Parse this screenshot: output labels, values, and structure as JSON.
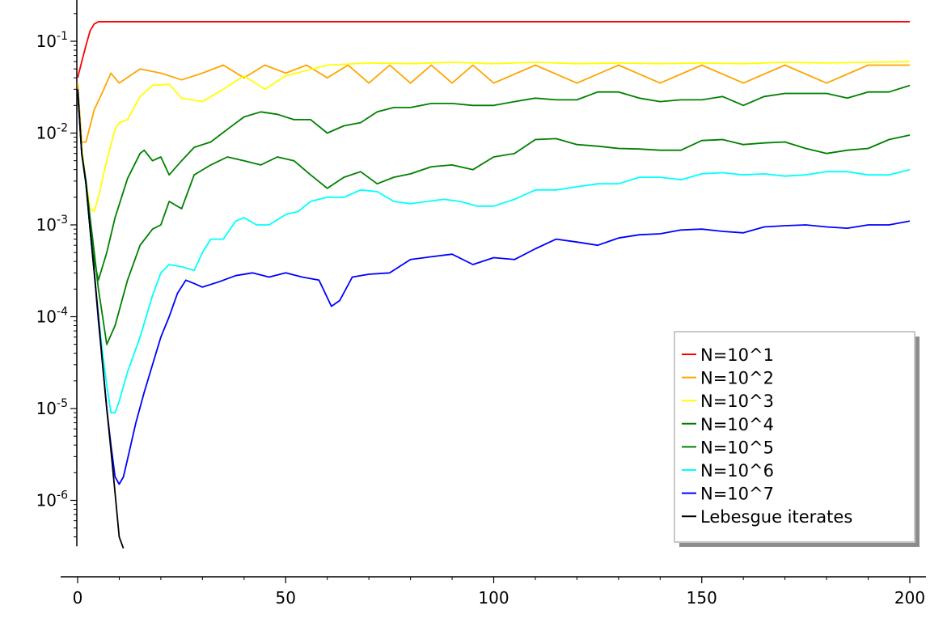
{
  "chart_data": {
    "type": "line",
    "title": "",
    "xlabel": "",
    "ylabel": "",
    "xlim": [
      0,
      200
    ],
    "ylim_log10": [
      -6.5,
      0.28
    ],
    "y_scale": "log",
    "grid": false,
    "legend_position": "bottom-right",
    "x_ticks": [
      {
        "value": 0,
        "label": "0"
      },
      {
        "value": 50,
        "label": "50"
      },
      {
        "value": 100,
        "label": "100"
      },
      {
        "value": 150,
        "label": "150"
      },
      {
        "value": 200,
        "label": "200"
      }
    ],
    "y_ticks": [
      {
        "log10": -1,
        "mantissa": "10",
        "exponent": "-1"
      },
      {
        "log10": -2,
        "mantissa": "10",
        "exponent": "-2"
      },
      {
        "log10": -3,
        "mantissa": "10",
        "exponent": "-3"
      },
      {
        "log10": -4,
        "mantissa": "10",
        "exponent": "-4"
      },
      {
        "log10": -5,
        "mantissa": "10",
        "exponent": "-5"
      },
      {
        "log10": -6,
        "mantissa": "10",
        "exponent": "-6"
      }
    ],
    "series": [
      {
        "name": "N=10^1",
        "color": "#ff0000",
        "x": [
          0,
          1,
          2,
          3,
          4,
          5,
          6,
          10,
          20,
          50,
          100,
          150,
          200
        ],
        "y": [
          0.04,
          0.06,
          0.09,
          0.13,
          0.155,
          0.163,
          0.163,
          0.163,
          0.163,
          0.163,
          0.163,
          0.163,
          0.163
        ]
      },
      {
        "name": "N=10^2",
        "color": "#ffa500",
        "x": [
          0,
          1,
          2,
          4,
          6,
          8,
          10,
          15,
          20,
          25,
          30,
          35,
          40,
          45,
          50,
          55,
          60,
          65,
          70,
          75,
          80,
          85,
          90,
          95,
          100,
          110,
          120,
          130,
          140,
          150,
          160,
          170,
          180,
          190,
          200
        ],
        "y": [
          0.035,
          0.008,
          0.008,
          0.018,
          0.028,
          0.045,
          0.035,
          0.05,
          0.045,
          0.038,
          0.045,
          0.055,
          0.04,
          0.055,
          0.045,
          0.055,
          0.04,
          0.055,
          0.035,
          0.055,
          0.035,
          0.055,
          0.035,
          0.055,
          0.035,
          0.055,
          0.035,
          0.055,
          0.035,
          0.055,
          0.035,
          0.055,
          0.035,
          0.055,
          0.055
        ]
      },
      {
        "name": "N=10^3",
        "color": "#ffff00",
        "x": [
          0,
          1,
          2,
          3,
          4,
          5,
          7,
          9,
          10,
          12,
          15,
          18,
          22,
          25,
          30,
          35,
          40,
          45,
          50,
          60,
          70,
          80,
          90,
          100,
          110,
          120,
          130,
          140,
          150,
          160,
          170,
          180,
          190,
          200
        ],
        "y": [
          0.03,
          0.007,
          0.003,
          0.0015,
          0.0014,
          0.002,
          0.005,
          0.011,
          0.013,
          0.014,
          0.025,
          0.033,
          0.034,
          0.024,
          0.022,
          0.03,
          0.042,
          0.03,
          0.042,
          0.055,
          0.058,
          0.057,
          0.059,
          0.057,
          0.059,
          0.057,
          0.058,
          0.057,
          0.058,
          0.057,
          0.059,
          0.058,
          0.059,
          0.06
        ]
      },
      {
        "name": "N=10^4",
        "color": "#008000",
        "x": [
          0,
          1,
          2,
          3,
          4,
          5,
          7,
          9,
          12,
          15,
          16,
          18,
          20,
          22,
          25,
          28,
          32,
          36,
          40,
          44,
          48,
          52,
          56,
          60,
          64,
          68,
          72,
          76,
          80,
          85,
          90,
          95,
          100,
          105,
          110,
          115,
          120,
          125,
          130,
          135,
          140,
          145,
          150,
          155,
          160,
          165,
          170,
          175,
          180,
          185,
          190,
          195,
          200
        ],
        "y": [
          0.03,
          0.006,
          0.003,
          0.001,
          0.0004,
          0.00025,
          0.0005,
          0.0012,
          0.0032,
          0.006,
          0.0065,
          0.005,
          0.0055,
          0.0035,
          0.005,
          0.007,
          0.008,
          0.011,
          0.015,
          0.017,
          0.016,
          0.014,
          0.014,
          0.01,
          0.012,
          0.013,
          0.017,
          0.019,
          0.019,
          0.021,
          0.021,
          0.02,
          0.02,
          0.022,
          0.024,
          0.023,
          0.023,
          0.028,
          0.028,
          0.024,
          0.022,
          0.023,
          0.023,
          0.025,
          0.02,
          0.025,
          0.027,
          0.027,
          0.027,
          0.024,
          0.028,
          0.028,
          0.033
        ]
      },
      {
        "name": "N=10^5",
        "color": "#008000",
        "x": [
          0,
          1,
          2,
          3,
          4,
          5,
          6,
          7,
          9,
          12,
          15,
          18,
          20,
          22,
          25,
          28,
          32,
          36,
          40,
          44,
          48,
          52,
          56,
          60,
          64,
          68,
          72,
          76,
          80,
          85,
          90,
          95,
          100,
          105,
          110,
          115,
          120,
          125,
          130,
          135,
          140,
          145,
          150,
          155,
          160,
          165,
          170,
          175,
          180,
          185,
          190,
          195,
          200
        ],
        "y": [
          0.03,
          0.006,
          0.003,
          0.0012,
          0.0005,
          0.0002,
          0.0001,
          5e-05,
          8e-05,
          0.00025,
          0.0006,
          0.0009,
          0.001,
          0.0018,
          0.0015,
          0.0035,
          0.0045,
          0.0055,
          0.005,
          0.0045,
          0.0055,
          0.005,
          0.0035,
          0.0025,
          0.0033,
          0.0038,
          0.0028,
          0.0033,
          0.0036,
          0.0043,
          0.0045,
          0.004,
          0.0055,
          0.006,
          0.0085,
          0.0087,
          0.0075,
          0.0072,
          0.0068,
          0.0067,
          0.0065,
          0.0065,
          0.0083,
          0.0085,
          0.0075,
          0.0078,
          0.008,
          0.0068,
          0.006,
          0.0065,
          0.0068,
          0.0085,
          0.0095
        ]
      },
      {
        "name": "N=10^6",
        "color": "#00ffff",
        "x": [
          0,
          1,
          2,
          3,
          4,
          5,
          6,
          7,
          8,
          9,
          10,
          12,
          15,
          18,
          20,
          22,
          25,
          28,
          30,
          32,
          35,
          38,
          40,
          43,
          46,
          50,
          53,
          56,
          60,
          64,
          68,
          72,
          76,
          80,
          84,
          88,
          92,
          96,
          100,
          105,
          110,
          115,
          120,
          125,
          130,
          135,
          140,
          145,
          150,
          155,
          160,
          165,
          170,
          175,
          180,
          185,
          190,
          195,
          200
        ],
        "y": [
          0.03,
          0.006,
          0.0028,
          0.0009,
          0.0003,
          0.0001,
          4e-05,
          1.8e-05,
          9e-06,
          9e-06,
          1.2e-05,
          2.5e-05,
          6e-05,
          0.00017,
          0.0003,
          0.00037,
          0.00035,
          0.00032,
          0.0005,
          0.0007,
          0.0007,
          0.0011,
          0.0012,
          0.001,
          0.001,
          0.0013,
          0.0014,
          0.0018,
          0.002,
          0.002,
          0.0024,
          0.0023,
          0.0018,
          0.0017,
          0.0018,
          0.0019,
          0.0018,
          0.0016,
          0.0016,
          0.0019,
          0.0024,
          0.0024,
          0.0026,
          0.0028,
          0.0028,
          0.0033,
          0.0033,
          0.0031,
          0.0036,
          0.0037,
          0.0035,
          0.0036,
          0.0034,
          0.0035,
          0.0038,
          0.0038,
          0.0035,
          0.0035,
          0.004
        ]
      },
      {
        "name": "N=10^7",
        "color": "#0000ff",
        "x": [
          0,
          1,
          2,
          3,
          4,
          5,
          6,
          7,
          8,
          9,
          10,
          11,
          12,
          14,
          16,
          18,
          20,
          22,
          24,
          26,
          28,
          30,
          34,
          38,
          42,
          46,
          50,
          54,
          58,
          61,
          63,
          66,
          70,
          75,
          80,
          85,
          90,
          95,
          100,
          105,
          110,
          115,
          120,
          125,
          130,
          135,
          140,
          145,
          150,
          155,
          160,
          165,
          170,
          175,
          180,
          185,
          190,
          195,
          200
        ],
        "y": [
          0.03,
          0.006,
          0.0028,
          0.0009,
          0.0003,
          9e-05,
          3e-05,
          1e-05,
          4e-06,
          1.8e-06,
          1.5e-06,
          1.8e-06,
          2.8e-06,
          7e-06,
          1.5e-05,
          3e-05,
          6e-05,
          0.0001,
          0.00018,
          0.00025,
          0.00023,
          0.00021,
          0.00024,
          0.00028,
          0.0003,
          0.00027,
          0.0003,
          0.00027,
          0.00025,
          0.00013,
          0.00015,
          0.00027,
          0.00029,
          0.0003,
          0.00042,
          0.00045,
          0.00048,
          0.00037,
          0.00044,
          0.00042,
          0.00055,
          0.0007,
          0.00065,
          0.0006,
          0.00072,
          0.00078,
          0.0008,
          0.00088,
          0.0009,
          0.00085,
          0.00082,
          0.00095,
          0.00098,
          0.001,
          0.00095,
          0.00092,
          0.001,
          0.001,
          0.0011
        ]
      },
      {
        "name": "Lebesgue iterates",
        "color": "#000000",
        "x": [
          0,
          1,
          2,
          3,
          4,
          5,
          6,
          7,
          8,
          9,
          10,
          11
        ],
        "y": [
          0.03,
          0.006,
          0.0028,
          0.0009,
          0.0003,
          0.0001,
          3e-05,
          1e-05,
          3.5e-06,
          1.2e-06,
          4e-07,
          3e-07
        ]
      }
    ]
  }
}
